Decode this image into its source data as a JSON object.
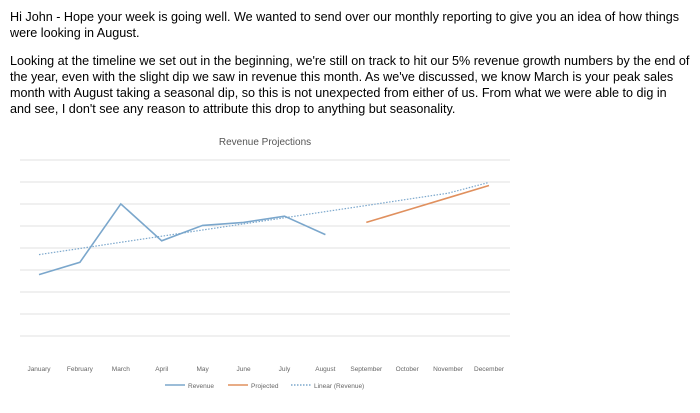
{
  "email": {
    "paragraphs": [
      "Hi John - Hope your week is going well. We wanted to send over our monthly reporting to give you an idea of how things were looking in August.",
      "Looking at the timeline we set out in the beginning, we're still on track to hit our 5% revenue growth numbers by the end of the year, even with the slight dip we saw in revenue this month. As we've discussed, we know March is your peak sales month with August taking a seasonal dip, so this is not unexpected from either of us. From what we were able to dig in and see, I don't see any reason to attribute this drop to anything but seasonality."
    ]
  },
  "chart_data": {
    "type": "line",
    "title": "Revenue Projections",
    "categories": [
      "January",
      "February",
      "March",
      "April",
      "May",
      "June",
      "July",
      "August",
      "September",
      "October",
      "November",
      "December"
    ],
    "y_gridlines": 9,
    "grid": true,
    "legend_position": "bottom",
    "series": [
      {
        "name": "Revenue",
        "color": "#7ba7cc",
        "style": "solid",
        "values": [
          20,
          24,
          43,
          31,
          36,
          37,
          39,
          33,
          null,
          null,
          null,
          null
        ]
      },
      {
        "name": "Projected",
        "color": "#e0905e",
        "style": "solid",
        "values": [
          null,
          null,
          null,
          null,
          null,
          null,
          null,
          null,
          37,
          41,
          45,
          49
        ]
      },
      {
        "name": "Linear (Revenue)",
        "color": "#7ba7cc",
        "style": "dotted",
        "values": [
          26.5,
          28.5,
          30.5,
          32.5,
          34.5,
          36.5,
          38.5,
          40.5,
          42.5,
          44.5,
          46.5,
          50
        ]
      }
    ]
  }
}
